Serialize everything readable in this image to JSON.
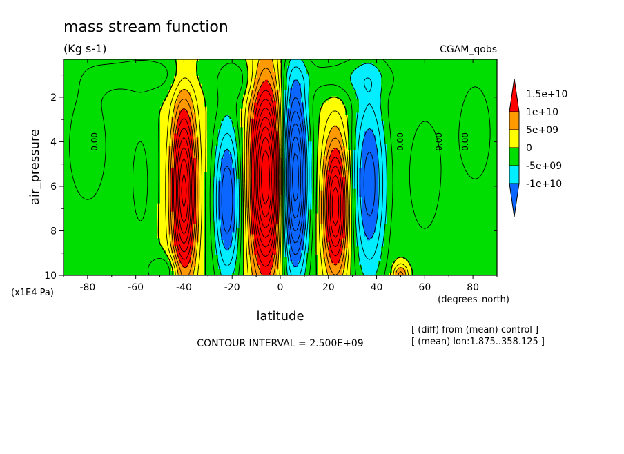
{
  "chart_data": {
    "type": "heatmap",
    "title": "mass stream function",
    "subtitle": "(Kg s-1)",
    "experiment": "CGAM_qobs",
    "xlabel": "latitude",
    "xunits": "(degrees_north)",
    "ylabel": "air_pressure",
    "yunits": "(x1E4 Pa)",
    "xlim": [
      -90,
      90
    ],
    "ylim": [
      10,
      0.3
    ],
    "x_ticks": [
      -80,
      -60,
      -40,
      -20,
      0,
      20,
      40,
      60,
      80
    ],
    "x_tick_labels": [
      "-80",
      "-60",
      "-40",
      "-20",
      "0",
      "20",
      "40",
      "60",
      "80"
    ],
    "y_ticks": [
      2,
      4,
      6,
      8,
      10
    ],
    "y_tick_labels": [
      "2",
      "4",
      "6",
      "8",
      "10"
    ],
    "contour_interval_text": "CONTOUR INTERVAL = 2.500E+09",
    "contour_interval": 2500000000,
    "notes": [
      "[ (diff) from (mean) control ]",
      "[ (mean) lon:1.875..358.125 ]"
    ],
    "colorbar": {
      "levels": [
        -10000000000,
        -5000000000,
        0,
        5000000000,
        10000000000,
        15000000000
      ],
      "labels": [
        "-1e+10",
        "-5e+09",
        "0",
        "5e+09",
        "1e+10",
        "1.5e+10"
      ],
      "colors": [
        "#0a66ff",
        "#00eeff",
        "#00dd00",
        "#ffff00",
        "#ff9900",
        "#ff0000"
      ]
    },
    "contour_labels": [
      {
        "text": "0.00",
        "lat": -76,
        "p": 4.0
      },
      {
        "text": "0.00",
        "lat": 51,
        "p": 4.0
      },
      {
        "text": "0.00",
        "lat": 67,
        "p": 4.0
      },
      {
        "text": "0.00",
        "lat": 78,
        "p": 4.0
      }
    ],
    "cells": [
      {
        "name": "nh-hadley",
        "lat": -6,
        "p": 5.6,
        "wlat": 6.5,
        "wp": 4.3,
        "peak": 30000000000
      },
      {
        "name": "sh-hadley",
        "lat": 6,
        "p": 5.6,
        "wlat": 5.5,
        "wp": 4.3,
        "peak": -25000000000
      },
      {
        "name": "sh-ferrel",
        "lat": -22,
        "p": 6.6,
        "wlat": 5.5,
        "wp": 3.6,
        "peak": -15000000000
      },
      {
        "name": "nh-ferrel",
        "lat": 37,
        "p": 5.9,
        "wlat": 7.0,
        "wp": 4.3,
        "peak": -14000000000
      },
      {
        "name": "sh-polar",
        "lat": -40,
        "p": 6.2,
        "wlat": 5.0,
        "wp": 3.8,
        "peak": 26000000000
      },
      {
        "name": "nh-polar",
        "lat": 23,
        "p": 6.9,
        "wlat": 5.0,
        "wp": 3.0,
        "peak": 22000000000
      },
      {
        "name": "sh-subpolar-neg",
        "lat": -58,
        "p": 5.8,
        "wlat": 5.0,
        "wp": 3.0,
        "peak": -3500000000
      },
      {
        "name": "nh-subpolar-neg",
        "lat": 60,
        "p": 5.5,
        "wlat": 9.0,
        "wp": 3.5,
        "peak": -4000000000
      },
      {
        "name": "sh-high-neg",
        "lat": -80,
        "p": 4.2,
        "wlat": 11.0,
        "wp": 3.5,
        "peak": -4000000000
      },
      {
        "name": "nh-high-neg",
        "lat": 81,
        "p": 3.6,
        "wlat": 9.0,
        "wp": 3.0,
        "peak": -4000000000
      },
      {
        "name": "upper-neg-a",
        "lat": -57,
        "p": 1.0,
        "wlat": 20.0,
        "wp": 0.9,
        "peak": -4000000000
      },
      {
        "name": "upper-neg-b",
        "lat": 28,
        "p": 1.1,
        "wlat": 22.0,
        "wp": 0.9,
        "peak": -4000000000
      },
      {
        "name": "upper-neg-c",
        "lat": -18,
        "p": 1.2,
        "wlat": 8.0,
        "wp": 0.9,
        "peak": -3500000000
      },
      {
        "name": "sfc-neg-sh",
        "lat": -48,
        "p": 9.8,
        "wlat": 7.0,
        "wp": 0.7,
        "peak": -5500000000
      },
      {
        "name": "sfc-pos-nh",
        "lat": 50,
        "p": 10.0,
        "wlat": 3.0,
        "wp": 0.5,
        "peak": 9000000000
      }
    ]
  }
}
